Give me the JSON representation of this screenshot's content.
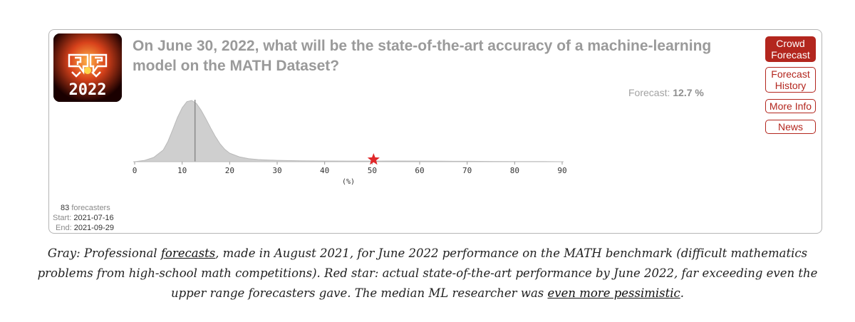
{
  "question": {
    "title": "On June 30, 2022, what will be the state-of-the-art accuracy of a machine-learning model on the MATH Dataset?",
    "forecast_label": "Forecast:",
    "forecast_value": "12.7 %"
  },
  "logo": {
    "text": "2022",
    "icon": "hypermind-2022-logo"
  },
  "buttons": [
    {
      "label": "Crowd Forecast",
      "active": true
    },
    {
      "label": "Forecast History",
      "active": false
    },
    {
      "label": "More Info",
      "active": false
    },
    {
      "label": "News",
      "active": false
    }
  ],
  "stats": {
    "forecasters_count": "83",
    "forecasters_label": "forecasters",
    "start_label": "Start:",
    "start_value": "2021-07-16",
    "end_label": "End:",
    "end_value": "2021-09-29"
  },
  "caption": {
    "p1": "Gray: Professional ",
    "link1": "forecasts",
    "p2": ", made in August 2021, for June 2022 performance on the MATH benchmark (difficult mathematics problems from high-school math competitions). Red star: actual state-of-the-art performance by June 2022, far exceeding even the upper range forecasters gave. The median ML researcher was ",
    "link2": "even more pessimistic",
    "p3": "."
  },
  "chart_data": {
    "type": "area",
    "xlabel": "(%)",
    "ylabel": "",
    "xlim": [
      0,
      90
    ],
    "xticks": [
      0,
      10,
      20,
      30,
      40,
      50,
      60,
      70,
      80,
      90
    ],
    "x": [
      0,
      2,
      4,
      6,
      7,
      8,
      9,
      10,
      11,
      12,
      13,
      14,
      15,
      16,
      17,
      18,
      19,
      20,
      22,
      24,
      26,
      28,
      30,
      35,
      40,
      45,
      50,
      55,
      60,
      65,
      70,
      75,
      80,
      85,
      90
    ],
    "density": [
      0,
      0.02,
      0.07,
      0.19,
      0.33,
      0.52,
      0.72,
      0.88,
      0.98,
      1.0,
      0.95,
      0.84,
      0.7,
      0.55,
      0.41,
      0.29,
      0.2,
      0.14,
      0.08,
      0.05,
      0.035,
      0.028,
      0.022,
      0.015,
      0.012,
      0.01,
      0.01,
      0.012,
      0.01,
      0.008,
      0.007,
      0.005,
      0.004,
      0.003,
      0
    ],
    "median_marker": 12.7,
    "actual_value": 50.3,
    "colors": {
      "fill": "#cfcfcf",
      "stroke": "#b9b9b9",
      "median_line": "#8a8a8a",
      "star": "#e0282a"
    }
  }
}
